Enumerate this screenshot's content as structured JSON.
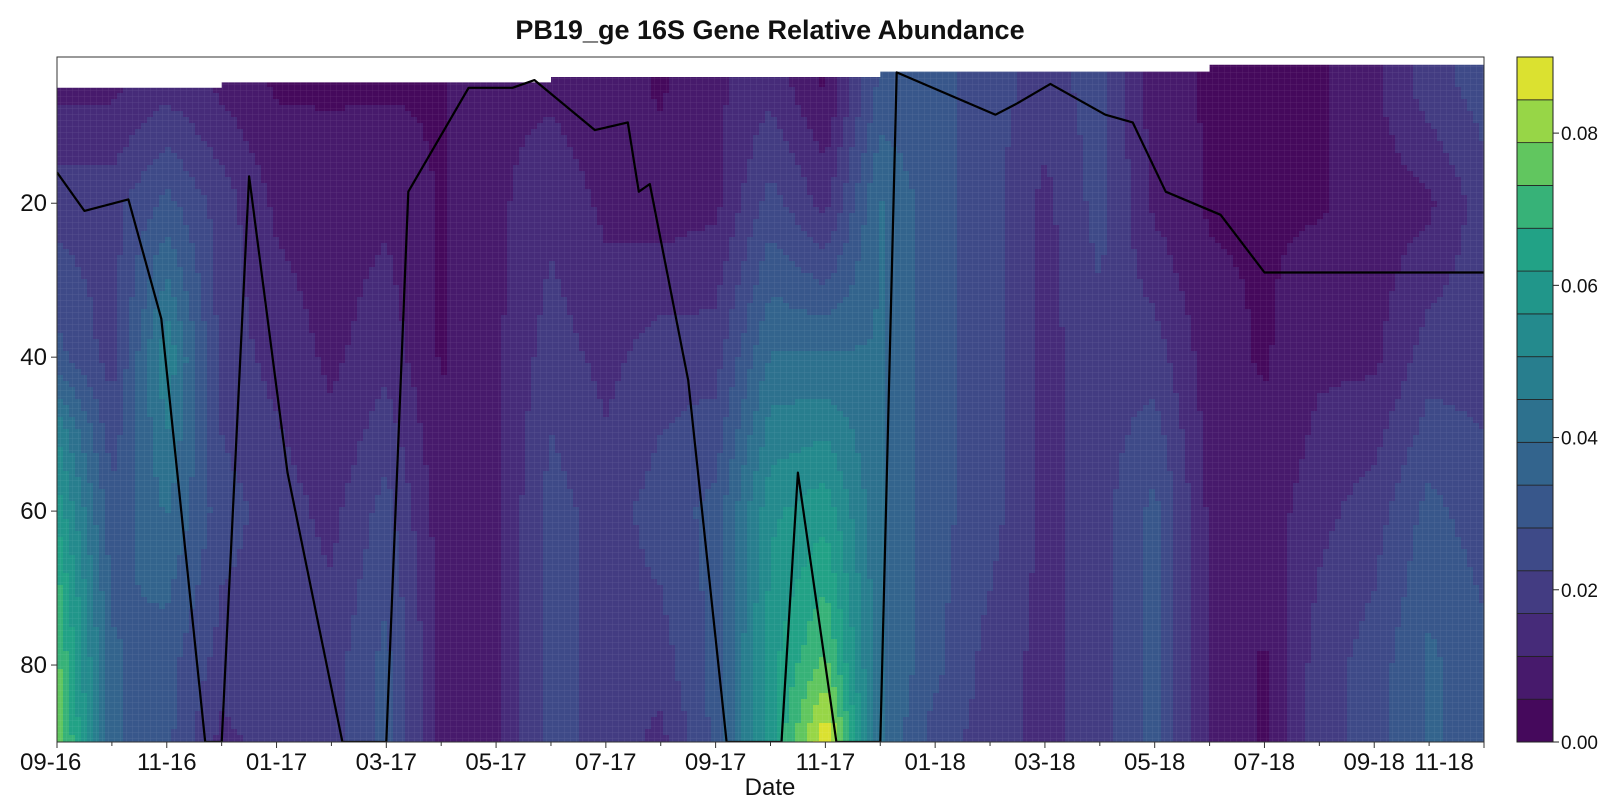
{
  "chart_data": {
    "type": "heatmap",
    "title": "PB19_ge 16S Gene Relative Abundance",
    "xlabel": "Date",
    "ylabel": "",
    "x_tick_labels": [
      "09-16",
      "11-16",
      "01-17",
      "03-17",
      "05-17",
      "07-17",
      "09-17",
      "11-17",
      "01-18",
      "03-18",
      "05-18",
      "07-18",
      "09-18",
      "11-18"
    ],
    "y_ticks": [
      20,
      40,
      60,
      80
    ],
    "y_range": [
      1,
      90
    ],
    "y_inverted": true,
    "colorbar": {
      "ticks": [
        0.0,
        0.02,
        0.04,
        0.06,
        0.08
      ],
      "tick_labels": [
        "0.00",
        "0.02",
        "0.04",
        "0.06",
        "0.08"
      ],
      "range": [
        0,
        0.09
      ],
      "levels": 16,
      "colormap": "viridis"
    },
    "grid": true,
    "abundance_columns": [
      {
        "x": 0,
        "profile": [
          [
            5,
            0.01
          ],
          [
            20,
            0.02
          ],
          [
            40,
            0.03
          ],
          [
            50,
            0.05
          ],
          [
            70,
            0.07
          ],
          [
            90,
            0.08
          ]
        ]
      },
      {
        "x": 0.5,
        "profile": [
          [
            5,
            0.01
          ],
          [
            20,
            0.02
          ],
          [
            40,
            0.02
          ],
          [
            60,
            0.03
          ],
          [
            80,
            0.035
          ],
          [
            90,
            0.035
          ]
        ]
      },
      {
        "x": 1.0,
        "profile": [
          [
            5,
            0.015
          ],
          [
            20,
            0.03
          ],
          [
            40,
            0.05
          ],
          [
            60,
            0.04
          ],
          [
            80,
            0.03
          ],
          [
            90,
            0.03
          ]
        ]
      },
      {
        "x": 1.5,
        "profile": [
          [
            5,
            0.01
          ],
          [
            20,
            0.02
          ],
          [
            40,
            0.02
          ],
          [
            60,
            0.025
          ],
          [
            80,
            0.02
          ],
          [
            90,
            0.015
          ]
        ]
      },
      {
        "x": 2.0,
        "profile": [
          [
            5,
            0.005
          ],
          [
            20,
            0.01
          ],
          [
            40,
            0.015
          ],
          [
            60,
            0.02
          ],
          [
            80,
            0.02
          ],
          [
            90,
            0.02
          ]
        ]
      },
      {
        "x": 2.5,
        "profile": [
          [
            5,
            0.005
          ],
          [
            20,
            0.008
          ],
          [
            40,
            0.01
          ],
          [
            60,
            0.015
          ],
          [
            80,
            0.02
          ],
          [
            90,
            0.02
          ]
        ]
      },
      {
        "x": 3.0,
        "profile": [
          [
            5,
            0.005
          ],
          [
            20,
            0.01
          ],
          [
            40,
            0.015
          ],
          [
            60,
            0.025
          ],
          [
            80,
            0.03
          ],
          [
            90,
            0.03
          ]
        ]
      },
      {
        "x": 3.5,
        "profile": [
          [
            5,
            0.005
          ],
          [
            20,
            0.005
          ],
          [
            40,
            0.005
          ],
          [
            60,
            0.008
          ],
          [
            80,
            0.01
          ],
          [
            90,
            0.01
          ]
        ]
      },
      {
        "x": 4.0,
        "profile": [
          [
            5,
            0.01
          ],
          [
            20,
            0.01
          ],
          [
            40,
            0.01
          ],
          [
            60,
            0.01
          ],
          [
            80,
            0.01
          ],
          [
            90,
            0.01
          ]
        ]
      },
      {
        "x": 4.5,
        "profile": [
          [
            5,
            0.01
          ],
          [
            20,
            0.015
          ],
          [
            40,
            0.02
          ],
          [
            60,
            0.025
          ],
          [
            80,
            0.025
          ],
          [
            90,
            0.025
          ]
        ]
      },
      {
        "x": 5.0,
        "profile": [
          [
            5,
            0.008
          ],
          [
            20,
            0.01
          ],
          [
            40,
            0.015
          ],
          [
            60,
            0.02
          ],
          [
            80,
            0.02
          ],
          [
            90,
            0.02
          ]
        ]
      },
      {
        "x": 5.5,
        "profile": [
          [
            5,
            0.005
          ],
          [
            20,
            0.008
          ],
          [
            40,
            0.02
          ],
          [
            60,
            0.025
          ],
          [
            80,
            0.02
          ],
          [
            90,
            0.015
          ]
        ]
      },
      {
        "x": 6.0,
        "profile": [
          [
            5,
            0.01
          ],
          [
            20,
            0.01
          ],
          [
            40,
            0.02
          ],
          [
            60,
            0.03
          ],
          [
            80,
            0.03
          ],
          [
            90,
            0.03
          ]
        ]
      },
      {
        "x": 6.5,
        "profile": [
          [
            5,
            0.015
          ],
          [
            20,
            0.025
          ],
          [
            40,
            0.04
          ],
          [
            60,
            0.055
          ],
          [
            80,
            0.06
          ],
          [
            90,
            0.06
          ]
        ]
      },
      {
        "x": 7.0,
        "profile": [
          [
            5,
            0.005
          ],
          [
            20,
            0.015
          ],
          [
            40,
            0.04
          ],
          [
            60,
            0.06
          ],
          [
            80,
            0.075
          ],
          [
            90,
            0.09
          ]
        ]
      },
      {
        "x": 7.5,
        "profile": [
          [
            5,
            0.03
          ],
          [
            20,
            0.04
          ],
          [
            40,
            0.04
          ],
          [
            60,
            0.04
          ],
          [
            80,
            0.04
          ],
          [
            90,
            0.04
          ]
        ]
      },
      {
        "x": 8.0,
        "profile": [
          [
            5,
            0.03
          ],
          [
            20,
            0.03
          ],
          [
            40,
            0.03
          ],
          [
            60,
            0.03
          ],
          [
            80,
            0.03
          ],
          [
            90,
            0.025
          ]
        ]
      },
      {
        "x": 8.5,
        "profile": [
          [
            5,
            0.025
          ],
          [
            20,
            0.025
          ],
          [
            40,
            0.025
          ],
          [
            60,
            0.025
          ],
          [
            80,
            0.02
          ],
          [
            90,
            0.02
          ]
        ]
      },
      {
        "x": 9.0,
        "profile": [
          [
            5,
            0.02
          ],
          [
            20,
            0.015
          ],
          [
            40,
            0.015
          ],
          [
            60,
            0.015
          ],
          [
            80,
            0.015
          ],
          [
            90,
            0.015
          ]
        ]
      },
      {
        "x": 9.5,
        "profile": [
          [
            5,
            0.025
          ],
          [
            20,
            0.025
          ],
          [
            40,
            0.02
          ],
          [
            60,
            0.02
          ],
          [
            80,
            0.02
          ],
          [
            90,
            0.02
          ]
        ]
      },
      {
        "x": 10.0,
        "profile": [
          [
            5,
            0.008
          ],
          [
            20,
            0.01
          ],
          [
            40,
            0.02
          ],
          [
            60,
            0.03
          ],
          [
            80,
            0.03
          ],
          [
            90,
            0.03
          ]
        ]
      },
      {
        "x": 10.5,
        "profile": [
          [
            5,
            0.005
          ],
          [
            20,
            0.005
          ],
          [
            40,
            0.008
          ],
          [
            60,
            0.01
          ],
          [
            80,
            0.01
          ],
          [
            90,
            0.01
          ]
        ]
      },
      {
        "x": 11.0,
        "profile": [
          [
            5,
            0.005
          ],
          [
            20,
            0.005
          ],
          [
            40,
            0.005
          ],
          [
            60,
            0.008
          ],
          [
            80,
            0.005
          ],
          [
            90,
            0.005
          ]
        ]
      },
      {
        "x": 11.5,
        "profile": [
          [
            5,
            0.005
          ],
          [
            20,
            0.005
          ],
          [
            40,
            0.01
          ],
          [
            60,
            0.015
          ],
          [
            80,
            0.02
          ],
          [
            90,
            0.02
          ]
        ]
      },
      {
        "x": 12.0,
        "profile": [
          [
            5,
            0.01
          ],
          [
            20,
            0.008
          ],
          [
            40,
            0.01
          ],
          [
            60,
            0.02
          ],
          [
            80,
            0.025
          ],
          [
            90,
            0.025
          ]
        ]
      },
      {
        "x": 12.5,
        "profile": [
          [
            5,
            0.02
          ],
          [
            20,
            0.01
          ],
          [
            40,
            0.02
          ],
          [
            60,
            0.03
          ],
          [
            80,
            0.035
          ],
          [
            90,
            0.035
          ]
        ]
      },
      {
        "x": 13.0,
        "profile": [
          [
            5,
            0.025
          ],
          [
            20,
            0.02
          ],
          [
            40,
            0.02
          ],
          [
            60,
            0.025
          ],
          [
            80,
            0.03
          ],
          [
            90,
            0.03
          ]
        ]
      }
    ],
    "line_series": {
      "x": [
        0.0,
        0.25,
        0.65,
        0.95,
        1.35,
        1.5,
        1.75,
        2.1,
        2.6,
        3.0,
        3.2,
        3.75,
        4.15,
        4.35,
        4.9,
        5.2,
        5.3,
        5.4,
        5.75,
        6.1,
        6.6,
        6.75,
        7.1,
        7.5,
        7.65,
        8.55,
        8.75,
        9.05,
        9.55,
        9.8,
        10.1,
        10.6,
        11.0,
        11.25,
        11.65,
        12.0,
        12.5,
        12.75,
        13.0
      ],
      "y": [
        16,
        21,
        19.5,
        35,
        90,
        90,
        16.5,
        55,
        90,
        90,
        18.5,
        5,
        5,
        4,
        10.5,
        9.5,
        18.5,
        17.5,
        43,
        90,
        90,
        55,
        90,
        90,
        3,
        8.5,
        7,
        4.5,
        8.5,
        9.5,
        18.5,
        21.5,
        29,
        29,
        29,
        29,
        29,
        29,
        29
      ]
    }
  }
}
